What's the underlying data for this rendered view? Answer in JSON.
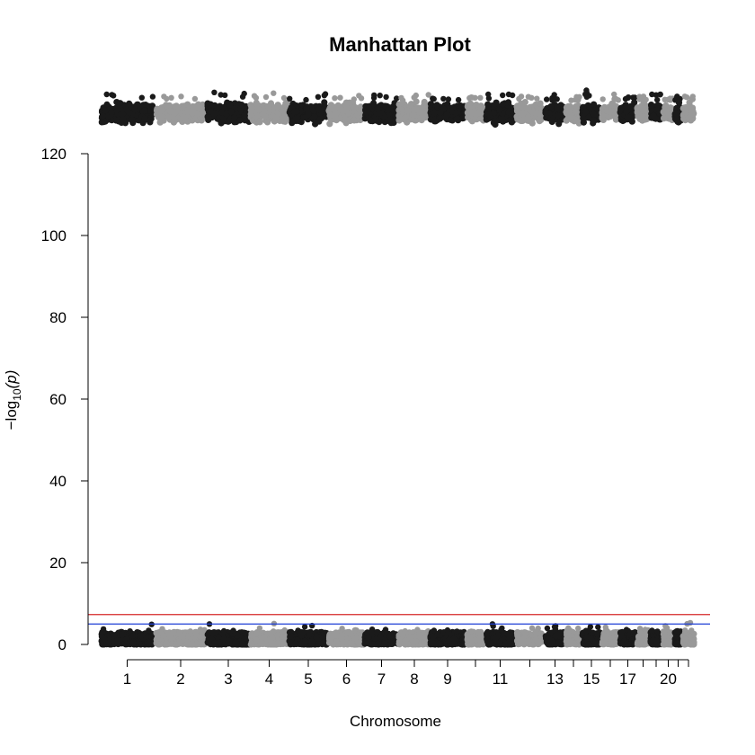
{
  "chart_data": {
    "type": "scatter",
    "title": "Manhattan Plot",
    "xlabel": "Chromosome",
    "ylabel_prefix": "−log",
    "ylabel_sub": "10",
    "ylabel_suffix": "(p)",
    "ylim": [
      0,
      120
    ],
    "yticks": [
      0,
      20,
      40,
      60,
      80,
      100,
      120
    ],
    "chromosomes": [
      {
        "chr": 1,
        "label": "1",
        "color": "#1a1a1a",
        "top_peak": 134.5,
        "bottom_peak": 4.9
      },
      {
        "chr": 2,
        "label": "2",
        "color": "#999999",
        "top_peak": 134.0,
        "bottom_peak": 3.8
      },
      {
        "chr": 3,
        "label": "3",
        "color": "#1a1a1a",
        "top_peak": 135.0,
        "bottom_peak": 5.0
      },
      {
        "chr": 4,
        "label": "4",
        "color": "#999999",
        "top_peak": 134.8,
        "bottom_peak": 5.1
      },
      {
        "chr": 5,
        "label": "5",
        "color": "#1a1a1a",
        "top_peak": 134.6,
        "bottom_peak": 4.6
      },
      {
        "chr": 6,
        "label": "6",
        "color": "#999999",
        "top_peak": 134.2,
        "bottom_peak": 3.9
      },
      {
        "chr": 7,
        "label": "7",
        "color": "#1a1a1a",
        "top_peak": 134.3,
        "bottom_peak": 3.7
      },
      {
        "chr": 8,
        "label": "8",
        "color": "#999999",
        "top_peak": 134.4,
        "bottom_peak": 3.6
      },
      {
        "chr": 9,
        "label": "9",
        "color": "#1a1a1a",
        "top_peak": 133.5,
        "bottom_peak": 3.5
      },
      {
        "chr": 10,
        "label": "",
        "color": "#999999",
        "top_peak": 133.8,
        "bottom_peak": 3.2
      },
      {
        "chr": 11,
        "label": "11",
        "color": "#1a1a1a",
        "top_peak": 134.5,
        "bottom_peak": 5.0
      },
      {
        "chr": 12,
        "label": "",
        "color": "#999999",
        "top_peak": 134.0,
        "bottom_peak": 4.0
      },
      {
        "chr": 13,
        "label": "13",
        "color": "#1a1a1a",
        "top_peak": 134.4,
        "bottom_peak": 4.5
      },
      {
        "chr": 14,
        "label": "",
        "color": "#999999",
        "top_peak": 133.9,
        "bottom_peak": 4.0
      },
      {
        "chr": 15,
        "label": "15",
        "color": "#1a1a1a",
        "top_peak": 135.5,
        "bottom_peak": 4.3
      },
      {
        "chr": 16,
        "label": "",
        "color": "#999999",
        "top_peak": 134.5,
        "bottom_peak": 4.2
      },
      {
        "chr": 17,
        "label": "17",
        "color": "#1a1a1a",
        "top_peak": 133.8,
        "bottom_peak": 3.6
      },
      {
        "chr": 18,
        "label": "",
        "color": "#999999",
        "top_peak": 134.0,
        "bottom_peak": 3.9
      },
      {
        "chr": 19,
        "label": "",
        "color": "#1a1a1a",
        "top_peak": 134.5,
        "bottom_peak": 3.4
      },
      {
        "chr": 20,
        "label": "20",
        "color": "#999999",
        "top_peak": 133.5,
        "bottom_peak": 4.5
      },
      {
        "chr": 21,
        "label": "",
        "color": "#1a1a1a",
        "top_peak": 134.0,
        "bottom_peak": 3.3
      },
      {
        "chr": 22,
        "label": "",
        "color": "#999999",
        "top_peak": 134.0,
        "bottom_peak": 5.3
      }
    ],
    "top_band_range": [
      127,
      133
    ],
    "bottom_band_range": [
      0,
      3
    ],
    "genomewide_line": {
      "y": 7.3,
      "color": "#d62728"
    },
    "suggestive_line": {
      "y": 5.0,
      "color": "#1f3fd6"
    },
    "grid": false,
    "legend": "none"
  }
}
